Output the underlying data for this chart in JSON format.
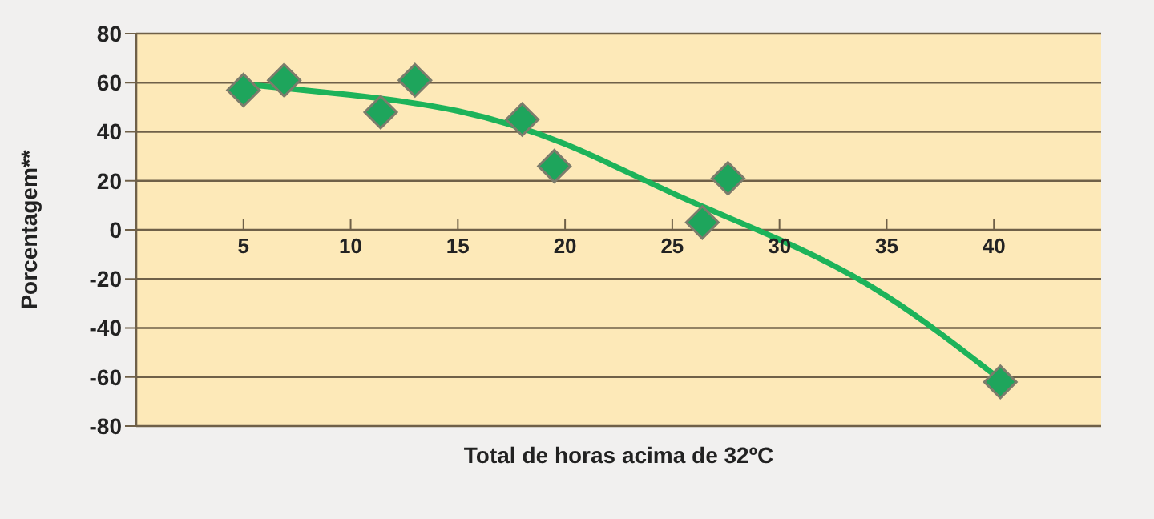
{
  "chart_data": {
    "type": "scatter",
    "xlabel": "Total de horas acima de 32ºC",
    "ylabel": "Porcentagem**",
    "xlim": [
      0,
      45
    ],
    "xticks": [
      5,
      10,
      15,
      20,
      25,
      30,
      35,
      40
    ],
    "ylim": [
      -80,
      80
    ],
    "yticks": [
      -80,
      -60,
      -40,
      -20,
      0,
      20,
      40,
      60,
      80
    ],
    "grid": "y",
    "series": [
      {
        "marker": "diamond",
        "color": "#1ea55c",
        "x": [
          5.0,
          6.9,
          11.4,
          13.0,
          18.0,
          19.5,
          26.4,
          27.6,
          40.3
        ],
        "values": [
          57,
          61,
          48,
          61,
          45,
          26,
          3,
          21,
          -62
        ]
      },
      {
        "type": "line",
        "marker": "none",
        "color": "#1db35a",
        "x": [
          5.5,
          10,
          15,
          20,
          25,
          30,
          35,
          40.3
        ],
        "values": [
          59,
          55,
          48.5,
          35,
          15,
          -4,
          -27,
          -61
        ]
      }
    ]
  }
}
